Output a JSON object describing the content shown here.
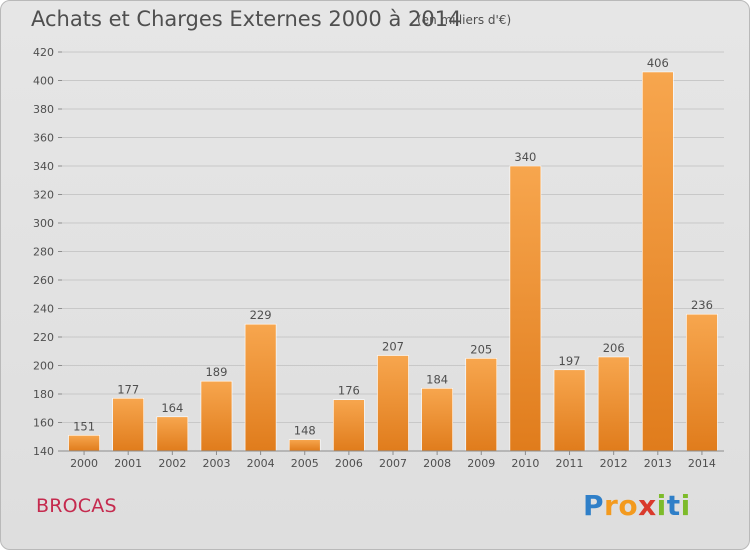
{
  "header": {
    "title": "Achats et Charges Externes 2000 à 2014",
    "subtitle": "(en milliers d'€)"
  },
  "footer": {
    "commune": "BROCAS",
    "logo_text": "Proxiti",
    "logo_letters": [
      "P",
      "r",
      "o",
      "x",
      "i",
      "t",
      "i"
    ]
  },
  "colors": {
    "bar_light": "#f7a64e",
    "bar_dark": "#e07c1c",
    "grid": "#c8c8c8",
    "text": "#4f4f4f",
    "commune": "#c52a4e"
  },
  "chart_data": {
    "type": "bar",
    "title": "Achats et Charges Externes 2000 à 2014",
    "subtitle": "(en milliers d'€)",
    "categories": [
      "2000",
      "2001",
      "2002",
      "2003",
      "2004",
      "2005",
      "2006",
      "2007",
      "2008",
      "2009",
      "2010",
      "2011",
      "2012",
      "2013",
      "2014"
    ],
    "values": [
      151,
      177,
      164,
      189,
      229,
      148,
      176,
      207,
      184,
      205,
      340,
      197,
      206,
      406,
      236
    ],
    "ylim": [
      140,
      420
    ],
    "yticks": [
      140,
      160,
      180,
      200,
      220,
      240,
      260,
      280,
      300,
      320,
      340,
      360,
      380,
      400,
      420
    ],
    "grid": true,
    "data_labels": true
  }
}
